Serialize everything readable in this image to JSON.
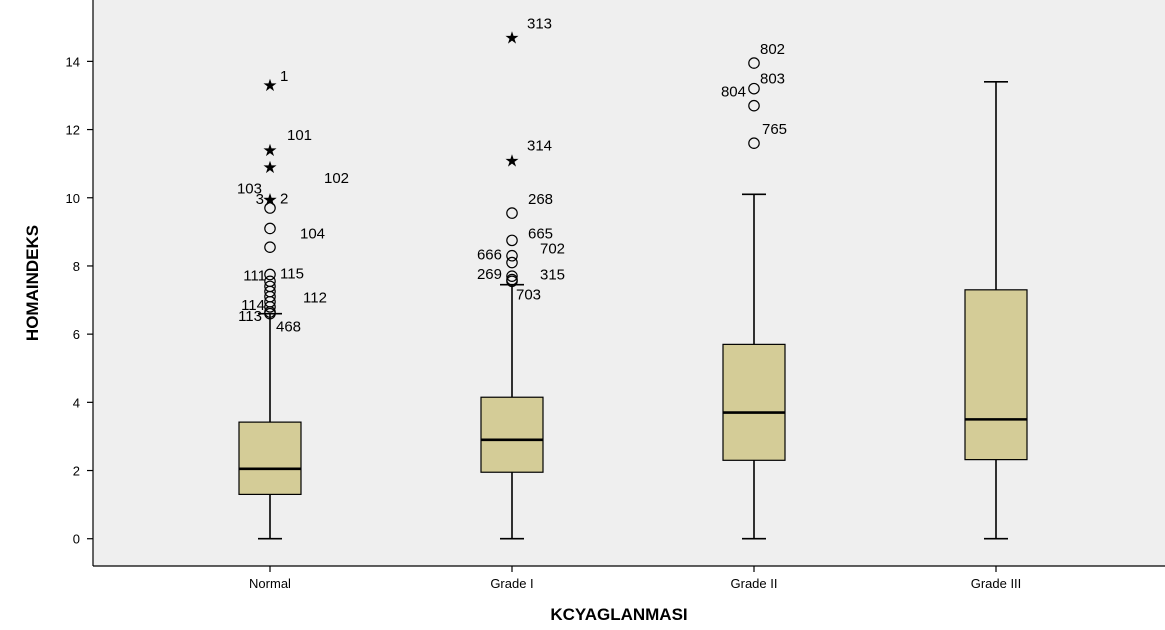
{
  "colors": {
    "plot_background": "#efefef",
    "box_fill": "#d4cc97"
  },
  "chart_data": {
    "type": "box",
    "xlabel": "KCYAGLANMASI",
    "ylabel": "HOMAINDEKS",
    "ylim": [
      -0.8,
      15.8
    ],
    "yticks": [
      0,
      2,
      4,
      6,
      8,
      10,
      12,
      14
    ],
    "grid": false,
    "categories": [
      "Normal",
      "Grade I",
      "Grade II",
      "Grade III"
    ],
    "boxes": [
      {
        "category": "Normal",
        "whisker_low": 0,
        "q1": 1.3,
        "median": 2.05,
        "q3": 3.42,
        "whisker_high": 6.6,
        "outliers": [
          {
            "y": 13.3,
            "marker": "star",
            "label": "1"
          },
          {
            "y": 11.4,
            "marker": "star",
            "label": "101"
          },
          {
            "y": 10.9,
            "marker": "star",
            "label": "102"
          },
          {
            "y": 9.95,
            "marker": "star",
            "label": "103"
          },
          {
            "y": 9.95,
            "marker": "star",
            "label": "2"
          },
          {
            "y": 9.7,
            "marker": "circle",
            "label": "3"
          },
          {
            "y": 9.1,
            "marker": "circle",
            "label": "104"
          },
          {
            "y": 8.55,
            "marker": "circle",
            "label": ""
          },
          {
            "y": 7.75,
            "marker": "circle",
            "label": "115"
          },
          {
            "y": 7.55,
            "marker": "circle",
            "label": "111"
          },
          {
            "y": 7.4,
            "marker": "circle",
            "label": ""
          },
          {
            "y": 7.25,
            "marker": "circle",
            "label": ""
          },
          {
            "y": 7.1,
            "marker": "circle",
            "label": "112"
          },
          {
            "y": 6.95,
            "marker": "circle",
            "label": "114"
          },
          {
            "y": 6.8,
            "marker": "circle",
            "label": ""
          },
          {
            "y": 6.65,
            "marker": "circle",
            "label": "113"
          },
          {
            "y": 6.6,
            "marker": "circle",
            "label": "468"
          }
        ]
      },
      {
        "category": "Grade I",
        "whisker_low": 0,
        "q1": 1.95,
        "median": 2.9,
        "q3": 4.15,
        "whisker_high": 7.45,
        "outliers": [
          {
            "y": 14.7,
            "marker": "star",
            "label": "313"
          },
          {
            "y": 11.1,
            "marker": "star",
            "label": "314"
          },
          {
            "y": 9.55,
            "marker": "circle",
            "label": "268"
          },
          {
            "y": 8.75,
            "marker": "circle",
            "label": "665"
          },
          {
            "y": 8.3,
            "marker": "circle",
            "label": "666"
          },
          {
            "y": 8.1,
            "marker": "circle",
            "label": "702"
          },
          {
            "y": 7.7,
            "marker": "circle",
            "label": "269"
          },
          {
            "y": 7.6,
            "marker": "circle",
            "label": "315"
          },
          {
            "y": 7.55,
            "marker": "circle",
            "label": "703"
          }
        ]
      },
      {
        "category": "Grade II",
        "whisker_low": 0,
        "q1": 2.3,
        "median": 3.7,
        "q3": 5.7,
        "whisker_high": 10.1,
        "outliers": [
          {
            "y": 13.95,
            "marker": "circle",
            "label": "802"
          },
          {
            "y": 13.2,
            "marker": "circle",
            "label": "803"
          },
          {
            "y": 12.7,
            "marker": "circle",
            "label": "804"
          },
          {
            "y": 11.6,
            "marker": "circle",
            "label": "765"
          }
        ]
      },
      {
        "category": "Grade III",
        "whisker_low": 0,
        "q1": 2.32,
        "median": 3.5,
        "q3": 7.3,
        "whisker_high": 13.4,
        "outliers": []
      }
    ]
  }
}
